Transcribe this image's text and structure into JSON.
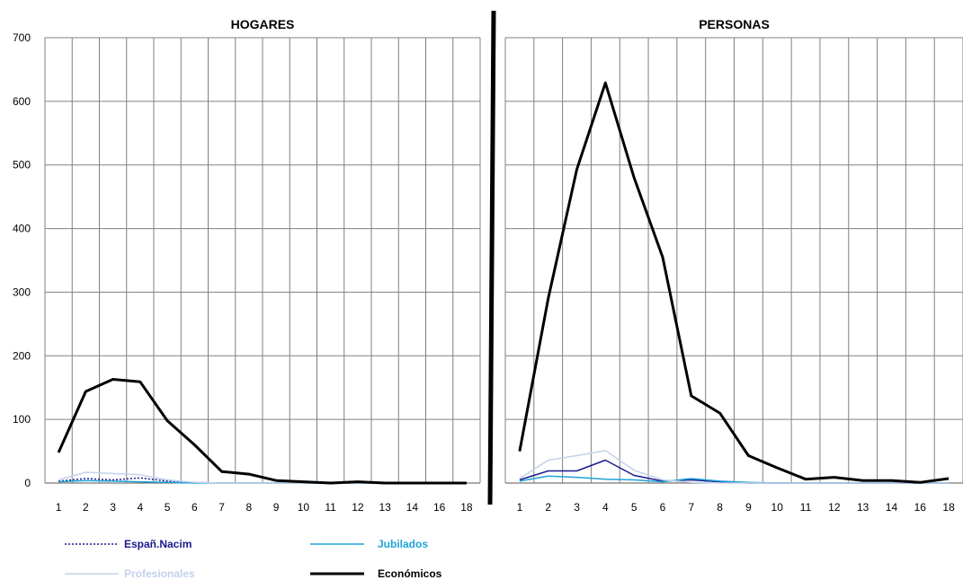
{
  "chart_data": [
    {
      "type": "line",
      "title": "HOGARES",
      "categories": [
        "1",
        "2",
        "3",
        "4",
        "5",
        "6",
        "7",
        "8",
        "9",
        "10",
        "11",
        "12",
        "13",
        "14",
        "16",
        "18"
      ],
      "ylim": [
        0,
        700
      ],
      "yticks": [
        0,
        100,
        200,
        300,
        400,
        500,
        600,
        700
      ],
      "grid": true,
      "series": [
        {
          "name": "Españ.Nacim",
          "color": "#1a1a8c",
          "style": "dotted",
          "values": [
            3,
            7,
            5,
            8,
            3,
            1,
            0,
            0,
            0,
            0,
            0,
            0,
            0,
            0,
            0,
            0
          ]
        },
        {
          "name": "Jubilados",
          "color": "#1fa3d6",
          "style": "solid",
          "values": [
            2,
            4,
            3,
            2,
            1,
            0,
            0,
            0,
            0,
            0,
            0,
            0,
            0,
            0,
            0,
            0
          ]
        },
        {
          "name": "Profesionales",
          "color": "#c3d1ea",
          "style": "solid",
          "values": [
            5,
            17,
            15,
            13,
            5,
            1,
            0,
            0,
            0,
            0,
            0,
            0,
            0,
            0,
            0,
            0
          ]
        },
        {
          "name": "Económicos",
          "color": "#000000",
          "style": "solid",
          "values": [
            48,
            144,
            163,
            159,
            98,
            60,
            18,
            14,
            4,
            2,
            0,
            2,
            0,
            0,
            0,
            0
          ]
        }
      ]
    },
    {
      "type": "line",
      "title": "PERSONAS",
      "categories": [
        "1",
        "2",
        "3",
        "4",
        "5",
        "6",
        "7",
        "8",
        "9",
        "10",
        "11",
        "12",
        "13",
        "14",
        "16",
        "18"
      ],
      "ylim": [
        0,
        700
      ],
      "yticks": [
        0,
        100,
        200,
        300,
        400,
        500,
        600,
        700
      ],
      "grid": true,
      "series": [
        {
          "name": "Españ.Nacim",
          "color": "#1a1a8c",
          "style": "solid",
          "values": [
            5,
            19,
            19,
            36,
            12,
            3,
            5,
            2,
            0,
            0,
            0,
            0,
            0,
            0,
            0,
            0
          ]
        },
        {
          "name": "Jubilados",
          "color": "#1fa3d6",
          "style": "solid",
          "values": [
            3,
            11,
            9,
            6,
            5,
            2,
            7,
            3,
            1,
            0,
            0,
            0,
            0,
            0,
            0,
            0
          ]
        },
        {
          "name": "Profesionales",
          "color": "#c3d1ea",
          "style": "solid",
          "values": [
            7,
            36,
            43,
            51,
            20,
            5,
            1,
            0,
            0,
            0,
            0,
            0,
            0,
            0,
            0,
            0
          ]
        },
        {
          "name": "Económicos",
          "color": "#000000",
          "style": "solid",
          "values": [
            50,
            290,
            493,
            629,
            480,
            355,
            137,
            110,
            43,
            24,
            6,
            9,
            4,
            4,
            1,
            7
          ]
        }
      ]
    }
  ],
  "legend": {
    "placement": "bottom-left",
    "items": [
      {
        "label": "Españ.Nacim",
        "color": "#1a1a8c",
        "text_color": "#1a1a8c",
        "style": "dotted"
      },
      {
        "label": "Jubilados",
        "color": "#1fa3d6",
        "text_color": "#1fa3d6",
        "style": "solid"
      },
      {
        "label": "Profesionales",
        "color": "#c3d1ea",
        "text_color": "#c3d1ea",
        "style": "solid"
      },
      {
        "label": "Económicos",
        "color": "#000000",
        "text_color": "#000000",
        "style": "solid"
      }
    ]
  }
}
